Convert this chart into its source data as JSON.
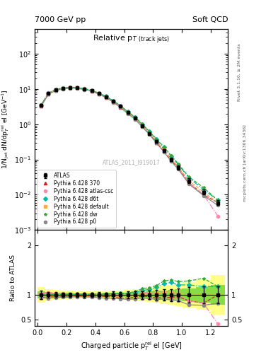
{
  "title_left": "7000 GeV pp",
  "title_right": "Soft QCD",
  "plot_title": "Relative p$_T$ (track jets)",
  "xlabel": "Charged particle p$_T^{rel}$ el [GeV]",
  "ylabel_main": "1/N$_{jet}$ dN/dp$_T^{rel}$ el [GeV$^{-1}$]",
  "ylabel_ratio": "Ratio to ATLAS",
  "right_label_top": "Rivet 3.1.10, ≥ 2M events",
  "right_label_bottom": "mcplots.cern.ch [arXiv:1306.3436]",
  "watermark": "ATLAS_2011_I919017",
  "xlim": [
    -0.02,
    1.32
  ],
  "ylim_main": [
    0.001,
    500
  ],
  "ylim_ratio": [
    0.38,
    2.3
  ],
  "x_atlas": [
    0.025,
    0.075,
    0.125,
    0.175,
    0.225,
    0.275,
    0.325,
    0.375,
    0.425,
    0.475,
    0.525,
    0.575,
    0.625,
    0.675,
    0.725,
    0.775,
    0.825,
    0.875,
    0.925,
    0.975,
    1.05,
    1.15,
    1.25
  ],
  "y_atlas": [
    3.5,
    7.5,
    9.5,
    10.5,
    11.0,
    10.8,
    10.0,
    9.0,
    7.5,
    6.0,
    4.5,
    3.2,
    2.2,
    1.5,
    0.9,
    0.55,
    0.32,
    0.18,
    0.1,
    0.06,
    0.025,
    0.012,
    0.006
  ],
  "y_atlas_err": [
    0.3,
    0.4,
    0.5,
    0.5,
    0.5,
    0.5,
    0.5,
    0.4,
    0.4,
    0.3,
    0.3,
    0.2,
    0.15,
    0.1,
    0.07,
    0.05,
    0.03,
    0.02,
    0.012,
    0.008,
    0.004,
    0.002,
    0.001
  ],
  "y_p370": [
    3.3,
    7.2,
    9.2,
    10.2,
    10.7,
    10.6,
    9.8,
    8.8,
    7.3,
    5.8,
    4.3,
    3.0,
    2.05,
    1.42,
    0.88,
    0.53,
    0.3,
    0.17,
    0.095,
    0.058,
    0.022,
    0.01,
    0.006
  ],
  "y_atlascsc": [
    3.6,
    7.8,
    9.8,
    10.8,
    11.2,
    11.0,
    10.2,
    9.1,
    7.6,
    6.0,
    4.5,
    3.2,
    2.2,
    1.52,
    0.93,
    0.57,
    0.33,
    0.19,
    0.105,
    0.06,
    0.022,
    0.01,
    0.0025
  ],
  "y_d6t": [
    3.5,
    7.5,
    9.5,
    10.5,
    11.0,
    10.9,
    10.1,
    9.1,
    7.6,
    6.1,
    4.6,
    3.3,
    2.25,
    1.57,
    0.98,
    0.61,
    0.37,
    0.22,
    0.125,
    0.072,
    0.03,
    0.014,
    0.007
  ],
  "y_default": [
    3.4,
    7.3,
    9.3,
    10.3,
    10.8,
    10.7,
    9.9,
    8.9,
    7.4,
    5.9,
    4.4,
    3.1,
    2.12,
    1.47,
    0.91,
    0.56,
    0.33,
    0.19,
    0.105,
    0.062,
    0.025,
    0.012,
    0.006
  ],
  "y_dw": [
    3.55,
    7.6,
    9.6,
    10.6,
    11.1,
    10.95,
    10.15,
    9.1,
    7.6,
    6.1,
    4.6,
    3.3,
    2.28,
    1.6,
    1.01,
    0.63,
    0.38,
    0.23,
    0.13,
    0.076,
    0.032,
    0.016,
    0.007
  ],
  "y_p0": [
    3.3,
    7.0,
    9.0,
    10.0,
    10.5,
    10.4,
    9.6,
    8.6,
    7.1,
    5.6,
    4.2,
    2.95,
    2.0,
    1.38,
    0.84,
    0.51,
    0.29,
    0.165,
    0.09,
    0.053,
    0.02,
    0.0095,
    0.005
  ],
  "bin_edges": [
    0.0,
    0.05,
    0.1,
    0.15,
    0.2,
    0.25,
    0.3,
    0.35,
    0.4,
    0.45,
    0.5,
    0.55,
    0.6,
    0.65,
    0.7,
    0.75,
    0.8,
    0.85,
    0.9,
    0.95,
    1.0,
    1.1,
    1.2,
    1.3
  ],
  "band_yellow": [
    0.15,
    0.12,
    0.1,
    0.09,
    0.08,
    0.07,
    0.07,
    0.07,
    0.07,
    0.08,
    0.08,
    0.09,
    0.1,
    0.11,
    0.12,
    0.14,
    0.16,
    0.18,
    0.2,
    0.22,
    0.25,
    0.3,
    0.4
  ],
  "band_green": [
    0.07,
    0.06,
    0.05,
    0.045,
    0.04,
    0.035,
    0.035,
    0.035,
    0.035,
    0.04,
    0.04,
    0.045,
    0.05,
    0.055,
    0.06,
    0.07,
    0.08,
    0.09,
    0.1,
    0.11,
    0.13,
    0.15,
    0.2
  ],
  "color_atlas": "#000000",
  "color_p370": "#cc2222",
  "color_atlascsc": "#ff88aa",
  "color_d6t": "#00bbaa",
  "color_default": "#ffaa44",
  "color_dw": "#33aa33",
  "color_p0": "#888888",
  "ms": 3.0,
  "lw": 0.9
}
